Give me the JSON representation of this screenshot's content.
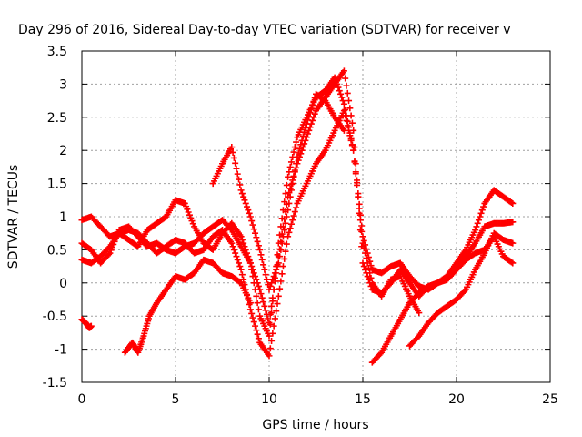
{
  "chart_data": {
    "type": "scatter",
    "title": "Day 296 of 2016, Sidereal Day-to-day VTEC variation (SDTVAR) for receiver v",
    "xlabel": "GPS time / hours",
    "ylabel": "SDTVAR / TECUs",
    "xlim": [
      0,
      25
    ],
    "ylim": [
      -1.5,
      3.5
    ],
    "xticks": [
      0,
      5,
      10,
      15,
      20,
      25
    ],
    "yticks": [
      -1.5,
      -1,
      -0.5,
      0,
      0.5,
      1,
      1.5,
      2,
      2.5,
      3,
      3.5
    ],
    "xtick_labels": [
      "0",
      "5",
      "10",
      "15",
      "20",
      "25"
    ],
    "ytick_labels": [
      "-1.5",
      "-1",
      "-0.5",
      "0",
      "0.5",
      "1",
      "1.5",
      "2",
      "2.5",
      "3",
      "3.5"
    ],
    "grid": true,
    "legend": "none",
    "marker": "plus",
    "color": "#ff0000",
    "series": [
      {
        "x": [
          0.0,
          0.5,
          1.0,
          1.5,
          2.0,
          2.5,
          3.0,
          3.5,
          4.0,
          4.5,
          5.0,
          5.5,
          6.0,
          6.5,
          7.0,
          7.5,
          8.0,
          8.5,
          9.0,
          9.5,
          10.0,
          10.5,
          11.0,
          11.5,
          12.0,
          12.5,
          13.0,
          13.5,
          14.0,
          14.5,
          15.0,
          15.5,
          16.0,
          16.5,
          17.0,
          17.5,
          18.0,
          18.5,
          19.0,
          19.5,
          20.0,
          20.5,
          21.0,
          21.5,
          22.0,
          22.5,
          23.0
        ],
        "y": [
          0.95,
          1.0,
          0.85,
          0.7,
          0.75,
          0.8,
          0.75,
          0.6,
          0.45,
          0.55,
          0.65,
          0.6,
          0.45,
          0.5,
          0.7,
          0.8,
          0.6,
          0.2,
          -0.4,
          -0.9,
          -1.1,
          -0.2,
          0.7,
          1.2,
          1.5,
          1.8,
          2.0,
          2.3,
          2.6,
          2.0,
          0.7,
          0.2,
          0.15,
          0.25,
          0.3,
          0.1,
          -0.05,
          -0.1,
          0.0,
          0.05,
          0.2,
          0.4,
          0.6,
          0.85,
          0.9,
          0.9,
          0.92
        ]
      },
      {
        "x": [
          0.0,
          0.5,
          1.0,
          1.5,
          2.0,
          2.5,
          3.0,
          3.5,
          4.0,
          4.5,
          5.0,
          5.5,
          6.0,
          6.5,
          7.0,
          7.5,
          8.0,
          8.5,
          9.0,
          9.5,
          10.0,
          10.5,
          11.0,
          11.5,
          12.0,
          12.5,
          13.0,
          13.5,
          14.0,
          14.5,
          15.0,
          15.5,
          16.0,
          16.5,
          17.0,
          17.5,
          18.0,
          18.5,
          19.0,
          19.5,
          20.0,
          20.5,
          21.0,
          21.5,
          22.0,
          22.5,
          23.0
        ],
        "y": [
          0.35,
          0.3,
          0.4,
          0.55,
          0.75,
          0.65,
          0.55,
          0.8,
          0.9,
          1.0,
          1.25,
          1.2,
          0.85,
          0.6,
          0.5,
          0.75,
          0.9,
          0.7,
          0.3,
          -0.1,
          -0.6,
          0.4,
          1.3,
          1.8,
          2.2,
          2.6,
          2.8,
          3.0,
          3.2,
          2.3,
          0.3,
          -0.1,
          -0.15,
          0.0,
          0.2,
          0.0,
          -0.2,
          -0.05,
          0.0,
          0.1,
          0.3,
          0.5,
          0.8,
          1.2,
          1.4,
          1.3,
          1.2
        ]
      },
      {
        "x": [
          0.0,
          0.5,
          1.0,
          1.5,
          2.0,
          2.5,
          3.0,
          3.5,
          4.0,
          4.5,
          5.0,
          5.5,
          6.0,
          6.5,
          7.0,
          7.5,
          8.0,
          8.5,
          9.0,
          9.5,
          10.0,
          10.5,
          11.0,
          11.5,
          12.0,
          12.5,
          13.0,
          13.5,
          14.0,
          14.5,
          15.0,
          15.5,
          16.0,
          16.5,
          17.0,
          17.5,
          18.0
        ],
        "y": [
          0.6,
          0.5,
          0.3,
          0.45,
          0.8,
          0.85,
          0.7,
          0.55,
          0.6,
          0.5,
          0.45,
          0.55,
          0.6,
          0.75,
          0.85,
          0.95,
          0.8,
          0.55,
          0.3,
          -0.5,
          -0.8,
          0.6,
          1.6,
          2.2,
          2.5,
          2.8,
          2.9,
          3.1,
          2.7,
          2.0,
          0.6,
          0.0,
          -0.2,
          0.05,
          0.1,
          -0.2,
          -0.45
        ]
      },
      {
        "x": [
          7.0,
          7.5,
          8.0,
          8.5,
          9.0,
          9.5,
          10.0,
          10.5,
          11.0,
          11.5,
          12.0,
          12.5,
          13.0,
          13.5,
          14.0
        ],
        "y": [
          1.5,
          1.8,
          2.05,
          1.4,
          1.0,
          0.5,
          -0.1,
          0.3,
          1.1,
          1.9,
          2.4,
          2.85,
          2.75,
          2.5,
          2.3
        ]
      },
      {
        "x": [
          2.3,
          2.7,
          3.0,
          3.3,
          3.6,
          4.0,
          4.5,
          5.0,
          5.5,
          6.0,
          6.5,
          7.0,
          7.5,
          8.0,
          8.5,
          9.0
        ],
        "y": [
          -1.05,
          -0.9,
          -1.05,
          -0.8,
          -0.5,
          -0.3,
          -0.1,
          0.1,
          0.05,
          0.15,
          0.35,
          0.3,
          0.15,
          0.1,
          0.0,
          -0.3
        ]
      },
      {
        "x": [
          15.5,
          16.0,
          16.5,
          17.0,
          17.5,
          18.0,
          18.5,
          19.0,
          19.5,
          20.0,
          20.5,
          21.0,
          21.5,
          22.0,
          22.5,
          23.0
        ],
        "y": [
          -1.2,
          -1.05,
          -0.8,
          -0.55,
          -0.3,
          -0.15,
          -0.05,
          0.0,
          0.1,
          0.2,
          0.35,
          0.45,
          0.5,
          0.7,
          0.4,
          0.3
        ]
      },
      {
        "x": [
          17.5,
          18.0,
          18.5,
          19.0,
          19.5,
          20.0,
          20.5,
          21.0,
          21.5,
          22.0,
          22.5,
          23.0
        ],
        "y": [
          -0.95,
          -0.8,
          -0.6,
          -0.45,
          -0.35,
          -0.25,
          -0.1,
          0.2,
          0.45,
          0.75,
          0.65,
          0.6
        ]
      },
      {
        "x": [
          0.0,
          0.2,
          0.4,
          0.5
        ],
        "y": [
          -0.55,
          -0.6,
          -0.68,
          -0.65
        ]
      }
    ]
  }
}
